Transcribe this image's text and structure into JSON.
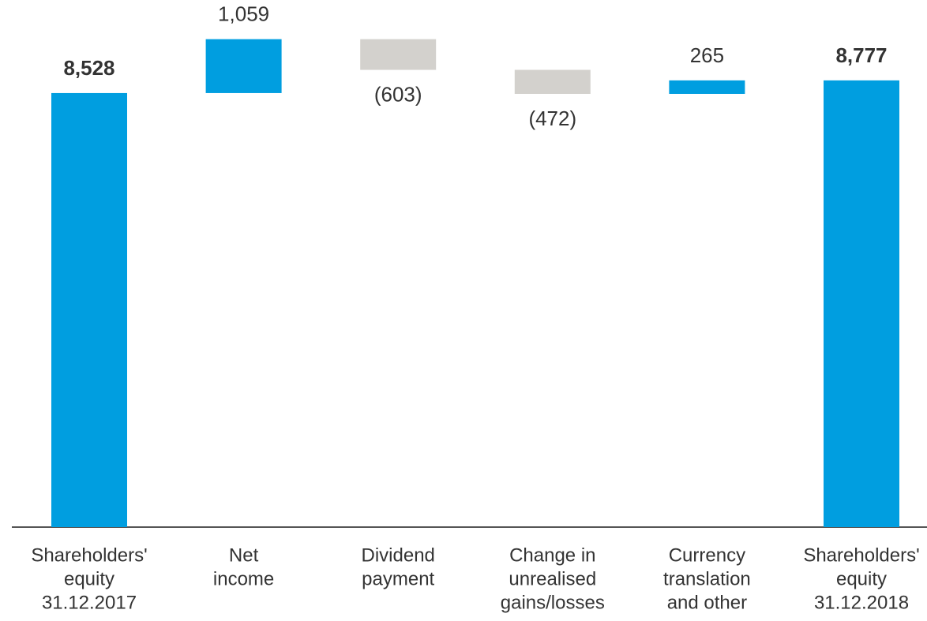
{
  "chart_data": {
    "type": "waterfall",
    "categories": [
      [
        "Shareholders'",
        "equity",
        "31.12.2017"
      ],
      [
        "Net",
        "income"
      ],
      [
        "Dividend",
        "payment"
      ],
      [
        "Change in",
        "unrealised",
        "gains/losses"
      ],
      [
        "Currency",
        "translation",
        "and other"
      ],
      [
        "Shareholders'",
        "equity",
        "31.12.2018"
      ]
    ],
    "values": [
      8528,
      1059,
      -603,
      -472,
      265,
      8777
    ],
    "value_labels": [
      "8,528",
      "1,059",
      "(603)",
      "(472)",
      "265",
      "8,777"
    ],
    "is_total": [
      true,
      false,
      false,
      false,
      false,
      true
    ],
    "colors": {
      "total": "#009ee0",
      "increase": "#009ee0",
      "decrease": "#d3d1cd"
    }
  }
}
